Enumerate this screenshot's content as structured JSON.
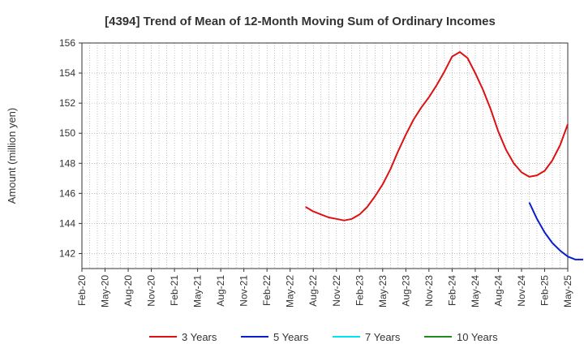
{
  "chart_data": {
    "type": "line",
    "title": "[4394]  Trend of Mean of 12-Month Moving Sum of Ordinary Incomes",
    "ylabel": "Amount (million yen)",
    "xlabel": "",
    "ylim": [
      141,
      156
    ],
    "yticks": [
      142,
      144,
      146,
      148,
      150,
      152,
      154,
      156
    ],
    "x_categories": [
      "Feb-20",
      "May-20",
      "Aug-20",
      "Nov-20",
      "Feb-21",
      "May-21",
      "Aug-21",
      "Nov-21",
      "Feb-22",
      "May-22",
      "Aug-22",
      "Nov-22",
      "Feb-23",
      "May-23",
      "Aug-23",
      "Nov-23",
      "Feb-24",
      "May-24",
      "Aug-24",
      "Nov-24",
      "Feb-25",
      "May-25"
    ],
    "grid": true,
    "legend_position": "bottom",
    "series": [
      {
        "name": "3 Years",
        "color": "#dd1111",
        "points": [
          [
            "Jul-22",
            145.1
          ],
          [
            "Aug-22",
            144.8
          ],
          [
            "Sep-22",
            144.6
          ],
          [
            "Oct-22",
            144.4
          ],
          [
            "Nov-22",
            144.3
          ],
          [
            "Dec-22",
            144.2
          ],
          [
            "Jan-23",
            144.3
          ],
          [
            "Feb-23",
            144.6
          ],
          [
            "Mar-23",
            145.1
          ],
          [
            "Apr-23",
            145.8
          ],
          [
            "May-23",
            146.6
          ],
          [
            "Jun-23",
            147.6
          ],
          [
            "Jul-23",
            148.8
          ],
          [
            "Aug-23",
            149.9
          ],
          [
            "Sep-23",
            150.9
          ],
          [
            "Oct-23",
            151.7
          ],
          [
            "Nov-23",
            152.4
          ],
          [
            "Dec-23",
            153.2
          ],
          [
            "Jan-24",
            154.1
          ],
          [
            "Feb-24",
            155.1
          ],
          [
            "Mar-24",
            155.4
          ],
          [
            "Apr-24",
            155.0
          ],
          [
            "May-24",
            154.0
          ],
          [
            "Jun-24",
            152.9
          ],
          [
            "Jul-24",
            151.6
          ],
          [
            "Aug-24",
            150.1
          ],
          [
            "Sep-24",
            148.9
          ],
          [
            "Oct-24",
            148.0
          ],
          [
            "Nov-24",
            147.4
          ],
          [
            "Dec-24",
            147.1
          ],
          [
            "Jan-25",
            147.2
          ],
          [
            "Feb-25",
            147.5
          ],
          [
            "Mar-25",
            148.2
          ],
          [
            "Apr-25",
            149.2
          ],
          [
            "May-25",
            150.6
          ]
        ]
      },
      {
        "name": "5 Years",
        "color": "#0a1fcc",
        "points": [
          [
            "Dec-24",
            145.4
          ],
          [
            "Jan-25",
            144.3
          ],
          [
            "Feb-25",
            143.4
          ],
          [
            "Mar-25",
            142.7
          ],
          [
            "Apr-25",
            142.2
          ],
          [
            "May-25",
            141.8
          ],
          [
            "Jun-25",
            141.6
          ],
          [
            "Jul-25",
            141.6
          ]
        ]
      },
      {
        "name": "7 Years",
        "color": "#00e5ee",
        "points": []
      },
      {
        "name": "10 Years",
        "color": "#228b22",
        "points": []
      }
    ]
  }
}
